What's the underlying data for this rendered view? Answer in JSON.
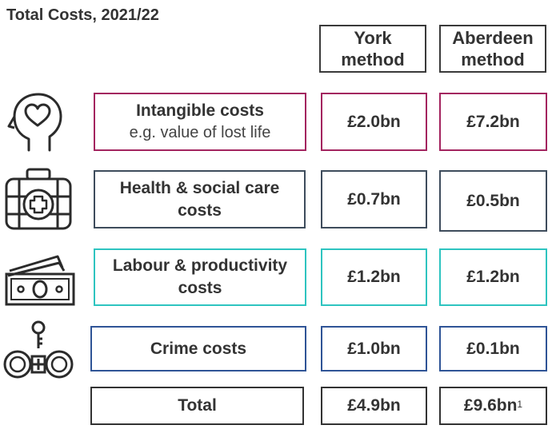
{
  "title": "Total Costs, 2021/22",
  "columns": {
    "york": "York method",
    "aberdeen": "Aberdeen method"
  },
  "rows": [
    {
      "id": "intangible",
      "label": "Intangible costs",
      "sub": "e.g. value of lost life",
      "york": "£2.0bn",
      "aberdeen": "£7.2bn",
      "color": "#a3245f",
      "icon": "head-heart-icon"
    },
    {
      "id": "health",
      "label": "Health & social care costs",
      "york": "£0.7bn",
      "aberdeen": "£0.5bn",
      "color": "#3e4c5c",
      "icon": "first-aid-kit-icon"
    },
    {
      "id": "labour",
      "label": "Labour & productivity costs",
      "york": "£1.2bn",
      "aberdeen": "£1.2bn",
      "color": "#2ec4c0",
      "icon": "banknotes-icon"
    },
    {
      "id": "crime",
      "label": "Crime costs",
      "york": "£1.0bn",
      "aberdeen": "£0.1bn",
      "color": "#2f5496",
      "icon": "handcuffs-icon"
    }
  ],
  "total": {
    "label": "Total",
    "york": "£4.9bn",
    "aberdeen": "£9.6bn",
    "aberdeen_note": "1"
  }
}
